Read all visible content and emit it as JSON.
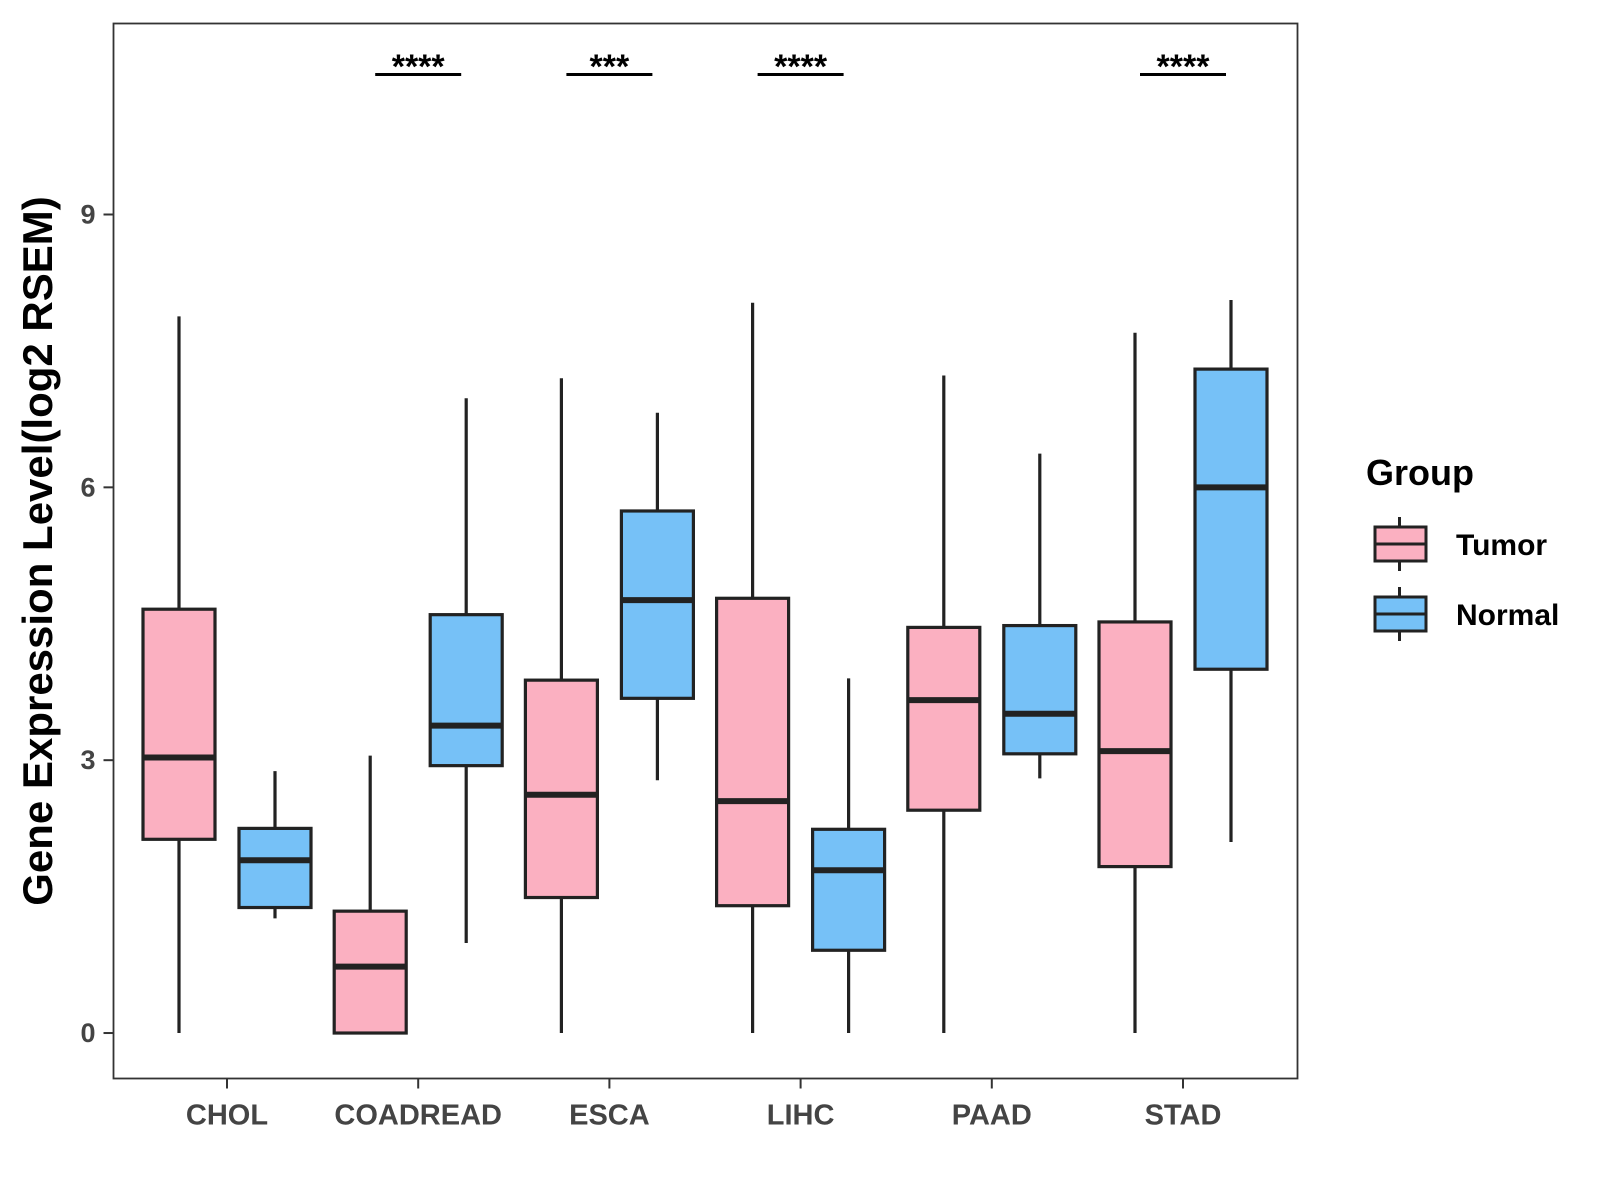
{
  "chart_data": {
    "type": "boxplot",
    "ylabel": "Gene Expression Level(log2 RSEM)",
    "xlabel": "",
    "ylim": [
      -0.5,
      11.1
    ],
    "yticks": [
      0,
      3,
      6,
      9
    ],
    "ytick_labels": [
      "0",
      "3",
      "6",
      "9"
    ],
    "categories": [
      "CHOL",
      "COADREAD",
      "ESCA",
      "LIHC",
      "PAAD",
      "STAD"
    ],
    "legend": {
      "title": "Group",
      "position": "right",
      "entries": [
        {
          "label": "Tumor",
          "color": "#FBB0C1"
        },
        {
          "label": "Normal",
          "color": "#76C1F7"
        }
      ]
    },
    "series": [
      {
        "name": "Tumor",
        "color": "#FBB0C1",
        "boxes": [
          {
            "min": 0.0,
            "q1": 2.13,
            "median": 3.03,
            "q3": 4.66,
            "max": 7.88
          },
          {
            "min": 0.0,
            "q1": 0.0,
            "median": 0.73,
            "q3": 1.34,
            "max": 3.05
          },
          {
            "min": 0.0,
            "q1": 1.49,
            "median": 2.62,
            "q3": 3.88,
            "max": 7.2
          },
          {
            "min": 0.0,
            "q1": 1.4,
            "median": 2.55,
            "q3": 4.78,
            "max": 8.03
          },
          {
            "min": 0.0,
            "q1": 2.45,
            "median": 3.66,
            "q3": 4.46,
            "max": 7.23
          },
          {
            "min": 0.0,
            "q1": 1.83,
            "median": 3.1,
            "q3": 4.52,
            "max": 7.7
          }
        ]
      },
      {
        "name": "Normal",
        "color": "#76C1F7",
        "boxes": [
          {
            "min": 1.26,
            "q1": 1.38,
            "median": 1.9,
            "q3": 2.25,
            "max": 2.88
          },
          {
            "min": 0.99,
            "q1": 2.94,
            "median": 3.38,
            "q3": 4.6,
            "max": 6.98
          },
          {
            "min": 2.78,
            "q1": 3.68,
            "median": 4.76,
            "q3": 5.74,
            "max": 6.82
          },
          {
            "min": 0.0,
            "q1": 0.91,
            "median": 1.79,
            "q3": 2.24,
            "max": 3.9
          },
          {
            "min": 2.8,
            "q1": 3.07,
            "median": 3.51,
            "q3": 4.48,
            "max": 6.37
          },
          {
            "min": 2.1,
            "q1": 4.0,
            "median": 6.0,
            "q3": 7.3,
            "max": 8.06
          }
        ]
      }
    ],
    "significance": [
      {
        "category": "COADREAD",
        "label": "****"
      },
      {
        "category": "ESCA",
        "label": "***"
      },
      {
        "category": "LIHC",
        "label": "****"
      },
      {
        "category": "STAD",
        "label": "****"
      }
    ]
  }
}
